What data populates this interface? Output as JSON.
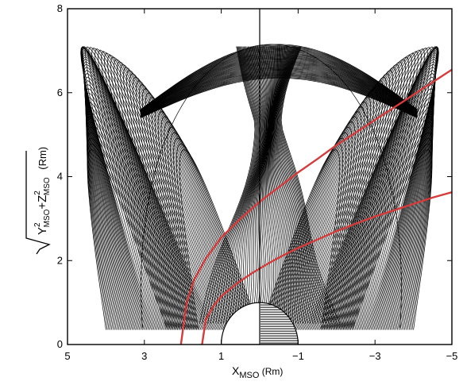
{
  "chart_data": {
    "type": "line",
    "title": "",
    "xlabel": {
      "base": "X",
      "subscript": "MSO",
      "unit": " (Rm)"
    },
    "ylabel": {
      "y_base": "Y",
      "z_base": "Z",
      "sup": "2",
      "subscript": "MSO",
      "plus": "+",
      "unit": " (Rm)"
    },
    "xlim": [
      5,
      -5
    ],
    "ylim": [
      0,
      8
    ],
    "x_ticks": [
      5,
      3,
      1,
      -1,
      -3,
      -5
    ],
    "x_tick_labels": [
      "5",
      "3",
      "1",
      "−1",
      "−3",
      "−5"
    ],
    "y_ticks": [
      0,
      2,
      4,
      6,
      8
    ],
    "y_tick_labels": [
      "0",
      "2",
      "4",
      "6",
      "8"
    ],
    "grid": false,
    "legend": "none",
    "series": [
      {
        "color": "#d63a3a",
        "x": [
          2.05,
          1.9,
          1.7,
          1.4,
          1.0,
          0.5,
          0.0,
          -0.5,
          -1.0,
          -1.5,
          -2.0,
          -2.5,
          -3.0,
          -3.5,
          -4.0,
          -4.5,
          -5.0
        ],
        "y": [
          0.0,
          1.0,
          1.55,
          2.05,
          2.55,
          3.0,
          3.4,
          3.75,
          4.1,
          4.42,
          4.75,
          5.05,
          5.35,
          5.65,
          5.95,
          6.25,
          6.55
        ]
      },
      {
        "color": "#d63a3a",
        "x": [
          1.5,
          1.4,
          1.2,
          1.0,
          0.6,
          0.2,
          -0.2,
          -0.6,
          -1.0,
          -1.5,
          -2.0,
          -2.5,
          -3.0,
          -3.5,
          -4.0,
          -4.5,
          -5.0
        ],
        "y": [
          0.0,
          0.6,
          0.92,
          1.15,
          1.45,
          1.7,
          1.92,
          2.12,
          2.3,
          2.5,
          2.7,
          2.88,
          3.05,
          3.2,
          3.35,
          3.5,
          3.63
        ]
      }
    ],
    "planet": {
      "radius": 1.0,
      "center": [
        0,
        0
      ],
      "night_side": "hatched"
    },
    "field_lines": {
      "color": "#000000",
      "outer_count": 64,
      "inner_count": 60
    }
  }
}
